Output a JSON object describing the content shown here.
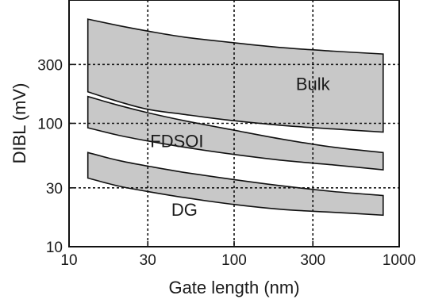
{
  "chart_data": {
    "type": "area",
    "title": "",
    "xlabel": "Gate length (nm)",
    "ylabel": "DIBL (mV)",
    "x_scale": "log",
    "y_scale": "log",
    "xlim": [
      10,
      1000
    ],
    "ylim": [
      10,
      1000
    ],
    "x_ticks": [
      10,
      30,
      100,
      300,
      1000
    ],
    "x_tick_labels": [
      "10",
      "30",
      "100",
      "300",
      "1000"
    ],
    "y_ticks": [
      10,
      30,
      100,
      300
    ],
    "y_tick_labels": [
      "10",
      "30",
      "100",
      "300"
    ],
    "grid": true,
    "series": [
      {
        "label": "Bulk",
        "x": [
          13,
          20,
          30,
          50,
          100,
          200,
          400,
          800
        ],
        "upper": [
          700,
          620,
          560,
          500,
          450,
          410,
          385,
          365
        ],
        "lower": [
          180,
          150,
          130,
          118,
          105,
          96,
          90,
          85
        ]
      },
      {
        "label": "FDSOI",
        "x": [
          13,
          20,
          30,
          50,
          100,
          200,
          400,
          800
        ],
        "upper": [
          165,
          140,
          122,
          105,
          88,
          74,
          64,
          58
        ],
        "lower": [
          92,
          80,
          72,
          64,
          56,
          50,
          46,
          42
        ]
      },
      {
        "label": "DG",
        "x": [
          13,
          20,
          30,
          50,
          100,
          200,
          400,
          800
        ],
        "upper": [
          58,
          50,
          45,
          40,
          35,
          31,
          28,
          26
        ],
        "lower": [
          36,
          31,
          28,
          25,
          22,
          20,
          19,
          18
        ]
      }
    ],
    "annotations": [
      {
        "text": "Bulk",
        "x": 300,
        "y": 210
      },
      {
        "text": "FDSOI",
        "x": 45,
        "y": 72
      },
      {
        "text": "DG",
        "x": 50,
        "y": 20
      }
    ],
    "colors": {
      "band_fill": "#c8c8c8",
      "edge": "#111111",
      "background": "#ffffff"
    }
  }
}
